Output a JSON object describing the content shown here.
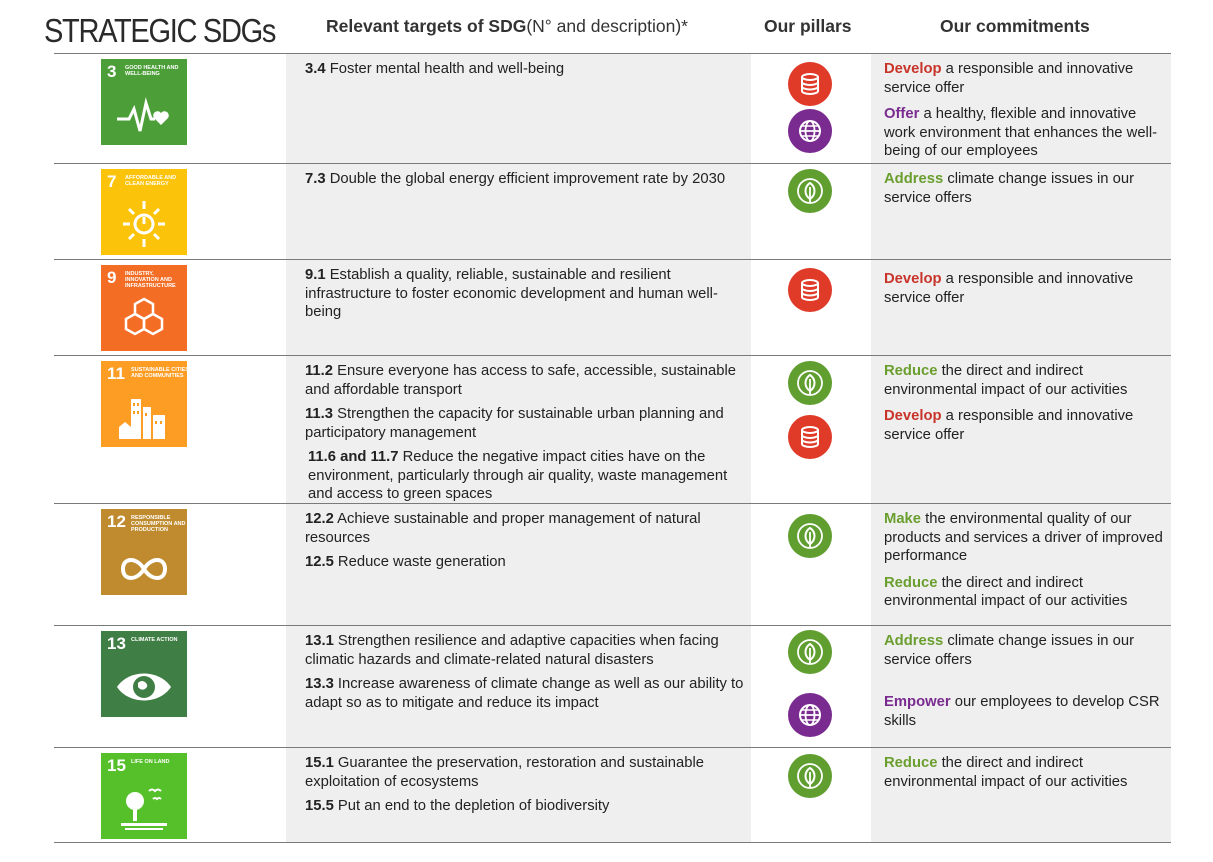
{
  "header": {
    "title": "STRATEGIC SDGs",
    "targets_bold": "Relevant targets of SDG",
    "targets_light": " (N° and description)*",
    "pillars": "Our pillars",
    "commitments": "Our commitments"
  },
  "colors": {
    "sdg3": "#4c9f38",
    "sdg7": "#fcc30b",
    "sdg9": "#f36d25",
    "sdg11": "#fd9d24",
    "sdg12": "#bf8b2e",
    "sdg13": "#3f7e44",
    "sdg15": "#56c02b",
    "pillar_red": "#e03a29",
    "pillar_purple": "#7a2b8f",
    "pillar_green": "#5f9e2f"
  },
  "rows": [
    {
      "sdg": {
        "num": "3",
        "label": "GOOD HEALTH AND WELL-BEING",
        "icon": "heartbeat-icon"
      },
      "targets": [
        {
          "code": "3.4",
          "text": " Foster mental health and well-being"
        }
      ],
      "pillars": [
        "database-icon",
        "globe-icon"
      ],
      "commitments": [
        {
          "kw": "Develop",
          "color": "red",
          "text": " a responsible and innovative service offer"
        },
        {
          "kw": "Offer",
          "color": "purple",
          "text": " a healthy, flexible and innovative work environment that enhances the well-being of our employees"
        }
      ]
    },
    {
      "sdg": {
        "num": "7",
        "label": "AFFORDABLE AND CLEAN ENERGY",
        "icon": "sun-power-icon"
      },
      "targets": [
        {
          "code": "7.3",
          "text": " Double the global energy efficient improvement rate by 2030"
        }
      ],
      "pillars": [
        "leaf-icon"
      ],
      "commitments": [
        {
          "kw": "Address",
          "color": "green",
          "text": " climate change issues in our service offers"
        }
      ]
    },
    {
      "sdg": {
        "num": "9",
        "label": "INDUSTRY, INNOVATION AND INFRASTRUCTURE",
        "icon": "cubes-icon"
      },
      "targets": [
        {
          "code": "9.1",
          "text": " Establish a quality, reliable, sustainable and resilient infrastructure to foster economic development and human well-being"
        }
      ],
      "pillars": [
        "database-icon"
      ],
      "commitments": [
        {
          "kw": "Develop",
          "color": "red",
          "text": " a responsible and innovative service offer"
        }
      ]
    },
    {
      "sdg": {
        "num": "11",
        "label": "SUSTAINABLE CITIES AND COMMUNITIES",
        "icon": "city-icon"
      },
      "targets": [
        {
          "code": "11.2",
          "text": " Ensure everyone has access to safe, accessible, sustainable and affordable transport"
        },
        {
          "code": "11.3",
          "text": " Strengthen the capacity for sustainable urban planning and participatory management"
        },
        {
          "code": "11.6 and 11.7",
          "text": " Reduce the negative impact cities have on the environment, particularly through air quality, waste management and access to green spaces"
        }
      ],
      "pillars": [
        "leaf-icon",
        "database-icon"
      ],
      "commitments": [
        {
          "kw": "Reduce",
          "color": "green",
          "text": " the direct and indirect environmental impact of our activities"
        },
        {
          "kw": "Develop",
          "color": "red",
          "text": " a responsible and innovative service offer"
        }
      ]
    },
    {
      "sdg": {
        "num": "12",
        "label": "RESPONSIBLE CONSUMPTION AND PRODUCTION",
        "icon": "infinity-icon"
      },
      "targets": [
        {
          "code": "12.2",
          "text": " Achieve sustainable and proper management of natural resources"
        },
        {
          "code": "12.5",
          "text": " Reduce waste generation"
        }
      ],
      "pillars": [
        "leaf-icon"
      ],
      "commitments": [
        {
          "kw": "Make",
          "color": "green",
          "text": " the environmental quality of our products and services a driver of improved performance"
        },
        {
          "kw": "Reduce",
          "color": "green",
          "text": " the direct and indirect environmental impact of our activities"
        }
      ]
    },
    {
      "sdg": {
        "num": "13",
        "label": "CLIMATE ACTION",
        "icon": "eye-earth-icon"
      },
      "targets": [
        {
          "code": "13.1",
          "text": " Strengthen resilience and adaptive capacities when facing climatic hazards and climate-related natural disasters"
        },
        {
          "code": "13.3",
          "text": " Increase awareness of climate change as well as our ability to adapt so as to mitigate and reduce its impact"
        }
      ],
      "pillars": [
        "leaf-icon",
        "globe-icon"
      ],
      "commitments": [
        {
          "kw": "Address",
          "color": "green",
          "text": " climate change issues in our service offers"
        },
        {
          "kw": "Empower",
          "color": "purple",
          "text": " our employees to develop CSR skills"
        }
      ]
    },
    {
      "sdg": {
        "num": "15",
        "label": "LIFE ON LAND",
        "icon": "tree-birds-icon"
      },
      "targets": [
        {
          "code": "15.1",
          "text": " Guarantee the preservation, restoration and sustainable exploitation of ecosystems"
        },
        {
          "code": "15.5",
          "text": " Put an end to the depletion of biodiversity"
        }
      ],
      "pillars": [
        "leaf-icon"
      ],
      "commitments": [
        {
          "kw": "Reduce",
          "color": "green",
          "text": " the direct and indirect environmental impact of our activities"
        }
      ]
    }
  ]
}
